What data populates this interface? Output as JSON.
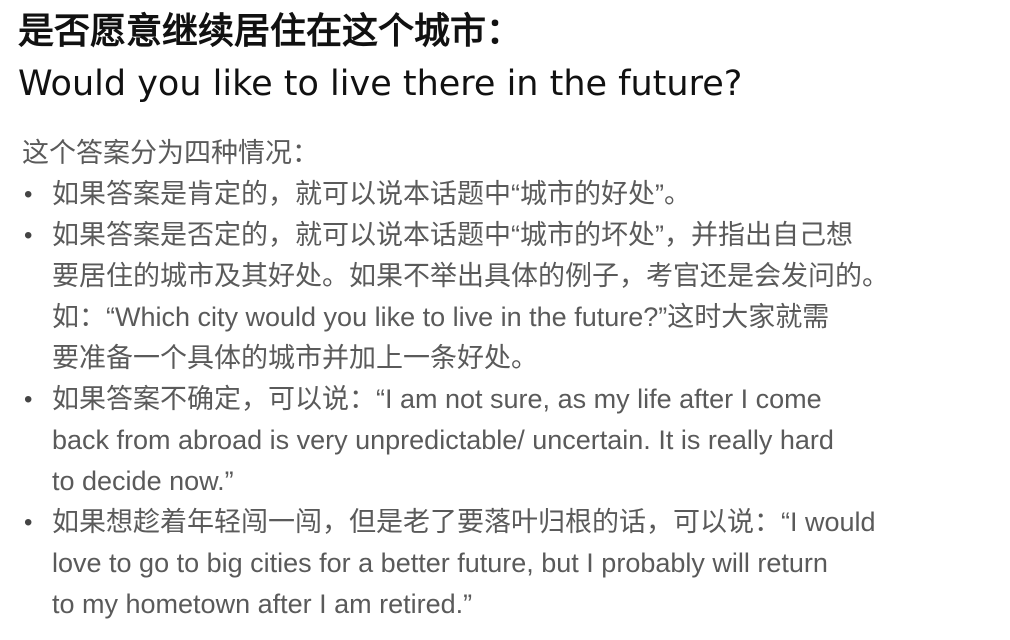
{
  "slide": {
    "title_cn": "是否愿意继续居住在这个城市：",
    "title_en": "Would you like to live there in the future?",
    "intro": "这个答案分为四种情况：",
    "bullet_glyph": "•",
    "bullets": [
      {
        "lines": [
          "如果答案是肯定的，就可以说本话题中“城市的好处”。"
        ]
      },
      {
        "lines": [
          "如果答案是否定的，就可以说本话题中“城市的坏处”，并指出自己想",
          "要居住的城市及其好处。如果不举出具体的例子，考官还是会发问的。",
          "如：“Which city would you like to live in the future?”这时大家就需",
          "要准备一个具体的城市并加上一条好处。"
        ]
      },
      {
        "lines": [
          "如果答案不确定，可以说：“I am not sure, as my life after I come",
          "back from abroad is very unpredictable/ uncertain. It is really hard",
          "to decide now.”"
        ]
      },
      {
        "lines": [
          "如果想趁着年轻闯一闯，但是老了要落叶归根的话，可以说：“I would",
          "love to go to big cities for a better future, but I probably will return",
          "to my hometown after I am retired.”"
        ]
      }
    ]
  }
}
